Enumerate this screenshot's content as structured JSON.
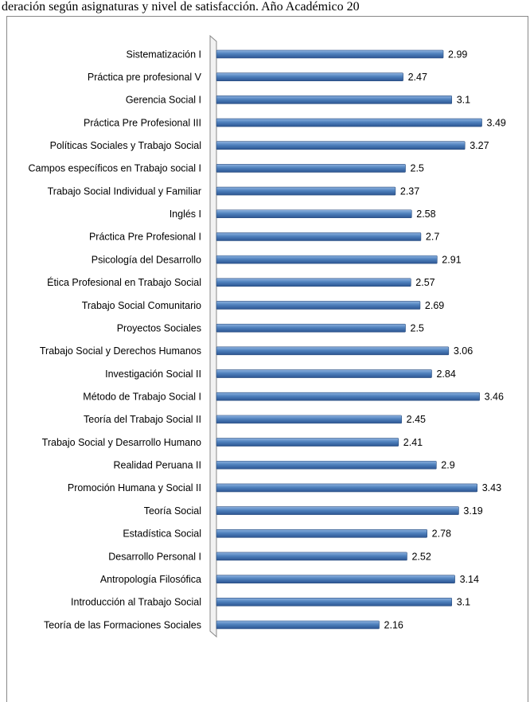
{
  "chart_data": {
    "type": "bar",
    "orientation": "horizontal",
    "title": "deración según asignaturas y nivel de satisfacción. Año Académico 20",
    "categories": [
      "Sistematización I",
      "Práctica pre profesional V",
      "Gerencia Social I",
      "Práctica Pre Profesional III",
      "Políticas Sociales y Trabajo Social",
      "Campos específicos en Trabajo social I",
      "Trabajo Social Individual y Familiar",
      "Inglés I",
      "Práctica Pre Profesional I",
      "Psicología del Desarrollo",
      "Ética Profesional en Trabajo Social",
      "Trabajo Social Comunitario",
      "Proyectos Sociales",
      "Trabajo Social y Derechos Humanos",
      "Investigación Social II",
      "Método de Trabajo Social I",
      "Teoría del Trabajo Social II",
      "Trabajo Social y Desarrollo Humano",
      "Realidad Peruana II",
      "Promoción Humana y Social II",
      "Teoría Social",
      "Estadística Social",
      "Desarrollo Personal I",
      "Antropología Filosófica",
      "Introducción al Trabajo Social",
      "Teoría de las Formaciones Sociales"
    ],
    "values": [
      2.99,
      2.47,
      3.1,
      3.49,
      3.27,
      2.5,
      2.37,
      2.58,
      2.7,
      2.91,
      2.57,
      2.69,
      2.5,
      3.06,
      2.84,
      3.46,
      2.45,
      2.41,
      2.9,
      3.43,
      3.19,
      2.78,
      2.52,
      3.14,
      3.1,
      2.16
    ],
    "color": "#4f81bd",
    "xlim": [
      0,
      4
    ]
  }
}
